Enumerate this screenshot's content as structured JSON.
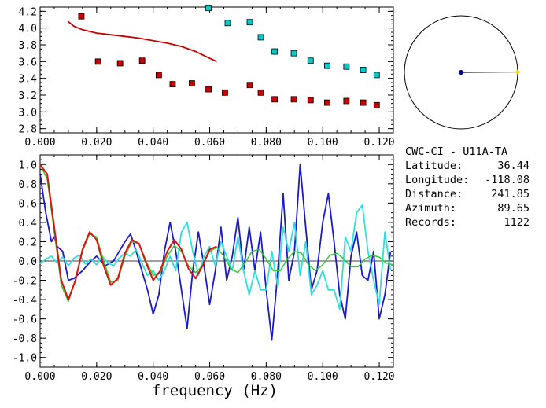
{
  "station": {
    "network": "CWC-CI",
    "separator": "-",
    "station_pair": "U11A-TA"
  },
  "info": [
    {
      "label": "Latitude:",
      "value": "36.44"
    },
    {
      "label": "Longitude:",
      "value": "-118.08"
    },
    {
      "label": "Distance:",
      "value": "241.85"
    },
    {
      "label": "Azimuth:",
      "value": "89.65"
    },
    {
      "label": "Records:",
      "value": "1122"
    }
  ],
  "compass": {
    "azimuth_deg": 89.65,
    "center_color": "#00008b",
    "tip_color": "#ffd700"
  },
  "chart_data": [
    {
      "type": "scatter",
      "name": "dispersion",
      "xlim": [
        0.0,
        0.125
      ],
      "ylim": [
        2.75,
        4.25
      ],
      "x_ticks": [
        0.0,
        0.02,
        0.04,
        0.06,
        0.08,
        0.1,
        0.12
      ],
      "x_tick_labels": [
        "0.000",
        "0.020",
        "0.040",
        "0.060",
        "0.080",
        "0.100",
        "0.120"
      ],
      "y_ticks": [
        2.8,
        3.0,
        3.2,
        3.4,
        3.6,
        3.8,
        4.0,
        4.2
      ],
      "y_tick_labels": [
        "2.8",
        "3.0",
        "3.2",
        "3.4",
        "3.6",
        "3.8",
        "4.0",
        "4.2"
      ],
      "series": [
        {
          "kind": "points",
          "color": "#cc0000",
          "x": [
            0.0146,
            0.0205,
            0.0283,
            0.0361,
            0.042,
            0.0469,
            0.0537,
            0.0596,
            0.0654,
            0.0742,
            0.0781,
            0.083,
            0.0898,
            0.0957,
            0.1016,
            0.1084,
            0.1143,
            0.1191
          ],
          "y": [
            4.14,
            3.6,
            3.58,
            3.61,
            3.44,
            3.33,
            3.34,
            3.27,
            3.23,
            3.32,
            3.23,
            3.15,
            3.15,
            3.14,
            3.11,
            3.13,
            3.11,
            3.08
          ]
        },
        {
          "kind": "points",
          "color": "#00cccc",
          "x": [
            0.0596,
            0.0664,
            0.0742,
            0.0781,
            0.083,
            0.0898,
            0.0957,
            0.1016,
            0.1084,
            0.1143,
            0.1191
          ],
          "y": [
            4.24,
            4.06,
            4.07,
            3.89,
            3.72,
            3.7,
            3.61,
            3.55,
            3.54,
            3.5,
            3.44
          ]
        },
        {
          "kind": "line",
          "color": "#cc0000",
          "x": [
            0.0098,
            0.012,
            0.015,
            0.02,
            0.025,
            0.03,
            0.035,
            0.04,
            0.045,
            0.05,
            0.055,
            0.06,
            0.0625
          ],
          "y": [
            4.08,
            4.02,
            3.98,
            3.94,
            3.92,
            3.9,
            3.88,
            3.85,
            3.82,
            3.78,
            3.72,
            3.64,
            3.6
          ]
        }
      ]
    },
    {
      "type": "line",
      "name": "coherency",
      "xlabel": "frequency (Hz)",
      "xlim": [
        0.0,
        0.125
      ],
      "ylim": [
        -1.1,
        1.1
      ],
      "x_ticks": [
        0.0,
        0.02,
        0.04,
        0.06,
        0.08,
        0.1,
        0.12
      ],
      "x_tick_labels": [
        "0.000",
        "0.020",
        "0.040",
        "0.060",
        "0.080",
        "0.100",
        "0.120"
      ],
      "y_ticks": [
        1.0,
        0.8,
        0.6,
        0.4,
        0.2,
        0.0,
        -0.2,
        -0.4,
        -0.6,
        -0.8,
        -1.0
      ],
      "y_tick_labels": [
        "1.0",
        "0.8",
        "0.6",
        "0.4",
        "0.2",
        "0.0",
        "-0.2",
        "-0.4",
        "-0.6",
        "-0.8",
        "-1.0"
      ],
      "series": [
        {
          "color": "#1a1acc",
          "width": 1.8,
          "x": [
            0.0,
            0.002,
            0.004,
            0.005,
            0.006,
            0.008,
            0.01,
            0.012,
            0.015,
            0.018,
            0.02,
            0.023,
            0.026,
            0.028,
            0.03,
            0.032,
            0.034,
            0.036,
            0.038,
            0.04,
            0.042,
            0.044,
            0.046,
            0.048,
            0.05,
            0.052,
            0.054,
            0.056,
            0.058,
            0.06,
            0.062,
            0.064,
            0.066,
            0.068,
            0.07,
            0.072,
            0.074,
            0.076,
            0.078,
            0.08,
            0.082,
            0.084,
            0.086,
            0.088,
            0.09,
            0.092,
            0.094,
            0.096,
            0.098,
            0.1,
            0.102,
            0.104,
            0.106,
            0.108,
            0.11,
            0.112,
            0.114,
            0.116,
            0.118,
            0.12,
            0.122,
            0.124
          ],
          "y": [
            0.9,
            0.5,
            0.2,
            0.25,
            0.15,
            0.1,
            -0.2,
            -0.18,
            -0.1,
            0.0,
            0.05,
            -0.05,
            0.0,
            0.1,
            0.2,
            0.28,
            0.1,
            -0.1,
            -0.3,
            -0.55,
            -0.35,
            0.1,
            0.4,
            0.1,
            -0.3,
            -0.7,
            -0.1,
            0.3,
            -0.05,
            -0.45,
            -0.1,
            0.35,
            -0.2,
            0.05,
            0.45,
            -0.1,
            0.35,
            -0.1,
            0.3,
            -0.3,
            -0.82,
            -0.15,
            0.7,
            -0.2,
            0.1,
            1.0,
            0.35,
            -0.3,
            -0.1,
            0.4,
            0.7,
            0.2,
            -0.35,
            -0.6,
            0.05,
            0.3,
            -0.15,
            -0.2,
            0.1,
            -0.6,
            -0.35,
            0.1
          ]
        },
        {
          "color": "#33dddd",
          "width": 1.8,
          "x": [
            0.0,
            0.002,
            0.004,
            0.006,
            0.008,
            0.01,
            0.012,
            0.014,
            0.016,
            0.018,
            0.02,
            0.022,
            0.024,
            0.026,
            0.028,
            0.03,
            0.032,
            0.034,
            0.036,
            0.038,
            0.04,
            0.042,
            0.044,
            0.046,
            0.048,
            0.05,
            0.052,
            0.054,
            0.056,
            0.058,
            0.06,
            0.062,
            0.064,
            0.066,
            0.068,
            0.07,
            0.072,
            0.074,
            0.076,
            0.078,
            0.08,
            0.082,
            0.084,
            0.086,
            0.088,
            0.09,
            0.092,
            0.094,
            0.096,
            0.098,
            0.1,
            0.102,
            0.104,
            0.106,
            0.108,
            0.11,
            0.112,
            0.114,
            0.116,
            0.118,
            0.12,
            0.122,
            0.124
          ],
          "y": [
            -0.03,
            0.02,
            0.05,
            -0.02,
            0.04,
            -0.05,
            0.03,
            0.06,
            -0.03,
            0.02,
            -0.04,
            0.05,
            -0.02,
            -0.05,
            0.03,
            0.08,
            0.05,
            0.12,
            -0.02,
            -0.15,
            -0.1,
            -0.2,
            -0.1,
            0.05,
            -0.1,
            0.3,
            0.4,
            0.1,
            -0.15,
            0.05,
            0.15,
            -0.05,
            0.2,
            0.05,
            -0.1,
            0.25,
            -0.1,
            -0.35,
            -0.1,
            -0.3,
            -0.3,
            0.1,
            -0.25,
            0.35,
            0.1,
            0.4,
            -0.15,
            0.2,
            -0.35,
            -0.25,
            -0.1,
            -0.3,
            -0.3,
            -0.5,
            0.25,
            0.1,
            0.5,
            0.58,
            0.1,
            -0.2,
            -0.45,
            0.3,
            -0.1
          ]
        },
        {
          "color": "#33cc33",
          "width": 1.5,
          "x": [
            0.0,
            0.0025,
            0.005,
            0.0075,
            0.01,
            0.0125,
            0.015,
            0.0175,
            0.02,
            0.0225,
            0.025,
            0.0275,
            0.03,
            0.0325,
            0.035,
            0.0375,
            0.04,
            0.0425,
            0.045,
            0.0475,
            0.05,
            0.0525,
            0.055,
            0.0575,
            0.06,
            0.0625,
            0.065,
            0.0675,
            0.07,
            0.0725,
            0.075,
            0.0775,
            0.08,
            0.0825,
            0.085,
            0.0875,
            0.09,
            0.0925,
            0.095,
            0.0975,
            0.1,
            0.1025,
            0.105,
            0.1075,
            0.11,
            0.1125,
            0.115,
            0.1175,
            0.12,
            0.1225,
            0.125
          ],
          "y": [
            1.0,
            0.85,
            0.3,
            -0.25,
            -0.42,
            -0.2,
            0.1,
            0.28,
            0.25,
            0.0,
            -0.22,
            -0.2,
            0.05,
            0.2,
            0.18,
            0.0,
            -0.15,
            -0.12,
            0.05,
            0.16,
            0.1,
            -0.05,
            -0.12,
            -0.05,
            0.1,
            0.14,
            0.05,
            -0.08,
            -0.12,
            -0.02,
            0.1,
            0.12,
            0.02,
            -0.1,
            -0.1,
            0.02,
            0.1,
            0.08,
            -0.04,
            -0.1,
            -0.04,
            0.06,
            0.08,
            0.02,
            -0.06,
            -0.06,
            0.02,
            0.06,
            0.04,
            -0.02,
            -0.04
          ]
        },
        {
          "color": "#dd1111",
          "width": 2.0,
          "x": [
            0.0,
            0.0025,
            0.005,
            0.0075,
            0.01,
            0.0125,
            0.015,
            0.0175,
            0.02,
            0.0225,
            0.025,
            0.0275,
            0.03,
            0.0325,
            0.035,
            0.0375,
            0.04,
            0.0425,
            0.045,
            0.0475,
            0.05,
            0.0525,
            0.055,
            0.0575,
            0.06,
            0.0625
          ],
          "y": [
            1.0,
            0.9,
            0.35,
            -0.2,
            -0.4,
            -0.2,
            0.12,
            0.3,
            0.22,
            -0.05,
            -0.25,
            -0.18,
            0.08,
            0.22,
            0.18,
            -0.02,
            -0.2,
            -0.1,
            0.1,
            0.22,
            0.12,
            -0.08,
            -0.18,
            -0.05,
            0.12,
            0.15
          ]
        }
      ]
    }
  ]
}
